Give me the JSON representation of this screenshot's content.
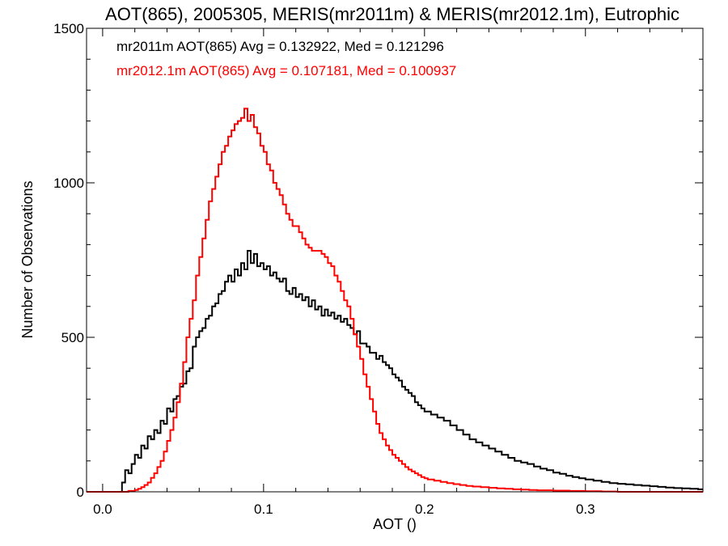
{
  "chart_data": {
    "type": "line",
    "title": "AOT(865), 2005305, MERIS(mr2011m) & MERIS(mr2012.1m), Eutrophic",
    "xlabel": "AOT ()",
    "ylabel": "Number of Observations",
    "xlim": [
      -0.01,
      0.373
    ],
    "ylim": [
      0,
      1500
    ],
    "xticks": [
      0.0,
      0.1,
      0.2,
      0.3
    ],
    "xtick_labels": [
      "0.0",
      "0.1",
      "0.2",
      "0.3"
    ],
    "yticks": [
      0,
      500,
      1000,
      1500
    ],
    "ytick_labels": [
      "0",
      "500",
      "1000",
      "1500"
    ],
    "grid": false,
    "legend_placement": "top-left",
    "series": [
      {
        "name": "mr2011m",
        "legend_text": "mr2011m AOT(865) Avg = 0.132922, Med = 0.121296",
        "color": "#000000",
        "step": "post",
        "points": [
          [
            -0.01,
            0
          ],
          [
            0.008,
            0
          ],
          [
            0.012,
            30
          ],
          [
            0.014,
            70
          ],
          [
            0.016,
            60
          ],
          [
            0.018,
            90
          ],
          [
            0.02,
            120
          ],
          [
            0.022,
            110
          ],
          [
            0.024,
            150
          ],
          [
            0.026,
            140
          ],
          [
            0.028,
            180
          ],
          [
            0.03,
            170
          ],
          [
            0.032,
            200
          ],
          [
            0.034,
            190
          ],
          [
            0.036,
            230
          ],
          [
            0.038,
            220
          ],
          [
            0.04,
            270
          ],
          [
            0.042,
            260
          ],
          [
            0.044,
            300
          ],
          [
            0.046,
            310
          ],
          [
            0.048,
            340
          ],
          [
            0.05,
            350
          ],
          [
            0.052,
            390
          ],
          [
            0.054,
            400
          ],
          [
            0.056,
            470
          ],
          [
            0.058,
            500
          ],
          [
            0.06,
            520
          ],
          [
            0.062,
            530
          ],
          [
            0.064,
            560
          ],
          [
            0.066,
            570
          ],
          [
            0.068,
            600
          ],
          [
            0.07,
            610
          ],
          [
            0.072,
            640
          ],
          [
            0.074,
            650
          ],
          [
            0.076,
            680
          ],
          [
            0.078,
            700
          ],
          [
            0.08,
            680
          ],
          [
            0.082,
            720
          ],
          [
            0.084,
            700
          ],
          [
            0.086,
            740
          ],
          [
            0.088,
            720
          ],
          [
            0.09,
            780
          ],
          [
            0.092,
            740
          ],
          [
            0.094,
            770
          ],
          [
            0.096,
            730
          ],
          [
            0.098,
            740
          ],
          [
            0.1,
            720
          ],
          [
            0.102,
            730
          ],
          [
            0.104,
            700
          ],
          [
            0.106,
            710
          ],
          [
            0.108,
            690
          ],
          [
            0.11,
            680
          ],
          [
            0.112,
            690
          ],
          [
            0.114,
            650
          ],
          [
            0.116,
            640
          ],
          [
            0.118,
            660
          ],
          [
            0.12,
            630
          ],
          [
            0.122,
            640
          ],
          [
            0.124,
            620
          ],
          [
            0.126,
            630
          ],
          [
            0.128,
            600
          ],
          [
            0.13,
            620
          ],
          [
            0.132,
            590
          ],
          [
            0.134,
            600
          ],
          [
            0.136,
            570
          ],
          [
            0.138,
            590
          ],
          [
            0.14,
            570
          ],
          [
            0.142,
            580
          ],
          [
            0.144,
            560
          ],
          [
            0.146,
            570
          ],
          [
            0.148,
            550
          ],
          [
            0.15,
            560
          ],
          [
            0.152,
            540
          ],
          [
            0.154,
            530
          ],
          [
            0.156,
            510
          ],
          [
            0.158,
            520
          ],
          [
            0.16,
            480
          ],
          [
            0.162,
            480
          ],
          [
            0.164,
            470
          ],
          [
            0.166,
            450
          ],
          [
            0.168,
            450
          ],
          [
            0.17,
            430
          ],
          [
            0.172,
            440
          ],
          [
            0.174,
            420
          ],
          [
            0.176,
            410
          ],
          [
            0.178,
            400
          ],
          [
            0.18,
            380
          ],
          [
            0.182,
            370
          ],
          [
            0.184,
            360
          ],
          [
            0.186,
            340
          ],
          [
            0.188,
            330
          ],
          [
            0.19,
            320
          ],
          [
            0.192,
            310
          ],
          [
            0.194,
            290
          ],
          [
            0.196,
            280
          ],
          [
            0.198,
            270
          ],
          [
            0.2,
            260
          ],
          [
            0.204,
            250
          ],
          [
            0.208,
            240
          ],
          [
            0.212,
            230
          ],
          [
            0.216,
            215
          ],
          [
            0.22,
            200
          ],
          [
            0.224,
            185
          ],
          [
            0.228,
            170
          ],
          [
            0.232,
            160
          ],
          [
            0.236,
            150
          ],
          [
            0.24,
            140
          ],
          [
            0.244,
            130
          ],
          [
            0.248,
            120
          ],
          [
            0.252,
            110
          ],
          [
            0.256,
            100
          ],
          [
            0.26,
            95
          ],
          [
            0.264,
            90
          ],
          [
            0.268,
            82
          ],
          [
            0.272,
            75
          ],
          [
            0.276,
            70
          ],
          [
            0.28,
            62
          ],
          [
            0.284,
            58
          ],
          [
            0.288,
            52
          ],
          [
            0.292,
            48
          ],
          [
            0.296,
            44
          ],
          [
            0.3,
            40
          ],
          [
            0.305,
            36
          ],
          [
            0.31,
            32
          ],
          [
            0.315,
            28
          ],
          [
            0.32,
            26
          ],
          [
            0.325,
            24
          ],
          [
            0.33,
            22
          ],
          [
            0.335,
            20
          ],
          [
            0.34,
            18
          ],
          [
            0.345,
            16
          ],
          [
            0.35,
            14
          ],
          [
            0.355,
            12
          ],
          [
            0.36,
            11
          ],
          [
            0.365,
            10
          ],
          [
            0.37,
            8
          ],
          [
            0.373,
            8
          ]
        ]
      },
      {
        "name": "mr2012.1m",
        "legend_text": "mr2012.1m AOT(865) Avg = 0.107181, Med = 0.100937",
        "color": "#ff0000",
        "step": "post",
        "points": [
          [
            -0.01,
            0
          ],
          [
            0.012,
            0
          ],
          [
            0.016,
            3
          ],
          [
            0.02,
            6
          ],
          [
            0.022,
            10
          ],
          [
            0.024,
            15
          ],
          [
            0.026,
            22
          ],
          [
            0.028,
            30
          ],
          [
            0.03,
            45
          ],
          [
            0.032,
            60
          ],
          [
            0.034,
            80
          ],
          [
            0.036,
            100
          ],
          [
            0.038,
            130
          ],
          [
            0.04,
            165
          ],
          [
            0.042,
            200
          ],
          [
            0.044,
            240
          ],
          [
            0.046,
            290
          ],
          [
            0.048,
            350
          ],
          [
            0.05,
            420
          ],
          [
            0.052,
            500
          ],
          [
            0.054,
            560
          ],
          [
            0.056,
            620
          ],
          [
            0.058,
            700
          ],
          [
            0.06,
            760
          ],
          [
            0.062,
            820
          ],
          [
            0.064,
            880
          ],
          [
            0.066,
            940
          ],
          [
            0.068,
            980
          ],
          [
            0.07,
            1020
          ],
          [
            0.072,
            1060
          ],
          [
            0.074,
            1100
          ],
          [
            0.076,
            1120
          ],
          [
            0.078,
            1150
          ],
          [
            0.08,
            1170
          ],
          [
            0.082,
            1190
          ],
          [
            0.084,
            1200
          ],
          [
            0.086,
            1210
          ],
          [
            0.088,
            1240
          ],
          [
            0.09,
            1200
          ],
          [
            0.092,
            1220
          ],
          [
            0.094,
            1180
          ],
          [
            0.096,
            1160
          ],
          [
            0.098,
            1120
          ],
          [
            0.1,
            1100
          ],
          [
            0.102,
            1060
          ],
          [
            0.104,
            1040
          ],
          [
            0.106,
            1000
          ],
          [
            0.108,
            980
          ],
          [
            0.11,
            960
          ],
          [
            0.112,
            930
          ],
          [
            0.114,
            900
          ],
          [
            0.116,
            880
          ],
          [
            0.118,
            860
          ],
          [
            0.12,
            860
          ],
          [
            0.122,
            840
          ],
          [
            0.124,
            820
          ],
          [
            0.126,
            800
          ],
          [
            0.128,
            790
          ],
          [
            0.13,
            780
          ],
          [
            0.132,
            780
          ],
          [
            0.134,
            780
          ],
          [
            0.136,
            770
          ],
          [
            0.138,
            760
          ],
          [
            0.14,
            740
          ],
          [
            0.142,
            730
          ],
          [
            0.144,
            700
          ],
          [
            0.146,
            680
          ],
          [
            0.148,
            650
          ],
          [
            0.15,
            620
          ],
          [
            0.152,
            600
          ],
          [
            0.154,
            560
          ],
          [
            0.156,
            510
          ],
          [
            0.158,
            470
          ],
          [
            0.16,
            430
          ],
          [
            0.162,
            380
          ],
          [
            0.164,
            340
          ],
          [
            0.166,
            300
          ],
          [
            0.168,
            260
          ],
          [
            0.17,
            220
          ],
          [
            0.172,
            190
          ],
          [
            0.174,
            170
          ],
          [
            0.176,
            150
          ],
          [
            0.178,
            135
          ],
          [
            0.18,
            120
          ],
          [
            0.182,
            110
          ],
          [
            0.184,
            100
          ],
          [
            0.186,
            90
          ],
          [
            0.188,
            80
          ],
          [
            0.19,
            72
          ],
          [
            0.192,
            66
          ],
          [
            0.194,
            60
          ],
          [
            0.196,
            54
          ],
          [
            0.198,
            48
          ],
          [
            0.2,
            44
          ],
          [
            0.202,
            40
          ],
          [
            0.206,
            36
          ],
          [
            0.21,
            32
          ],
          [
            0.214,
            28
          ],
          [
            0.218,
            25
          ],
          [
            0.222,
            22
          ],
          [
            0.226,
            19
          ],
          [
            0.23,
            17
          ],
          [
            0.235,
            15
          ],
          [
            0.24,
            13
          ],
          [
            0.245,
            11
          ],
          [
            0.25,
            10
          ],
          [
            0.255,
            8
          ],
          [
            0.26,
            7
          ],
          [
            0.265,
            6
          ],
          [
            0.27,
            5
          ],
          [
            0.28,
            4
          ],
          [
            0.29,
            3
          ],
          [
            0.3,
            2
          ],
          [
            0.31,
            1
          ],
          [
            0.32,
            0
          ],
          [
            0.373,
            0
          ]
        ]
      }
    ]
  }
}
